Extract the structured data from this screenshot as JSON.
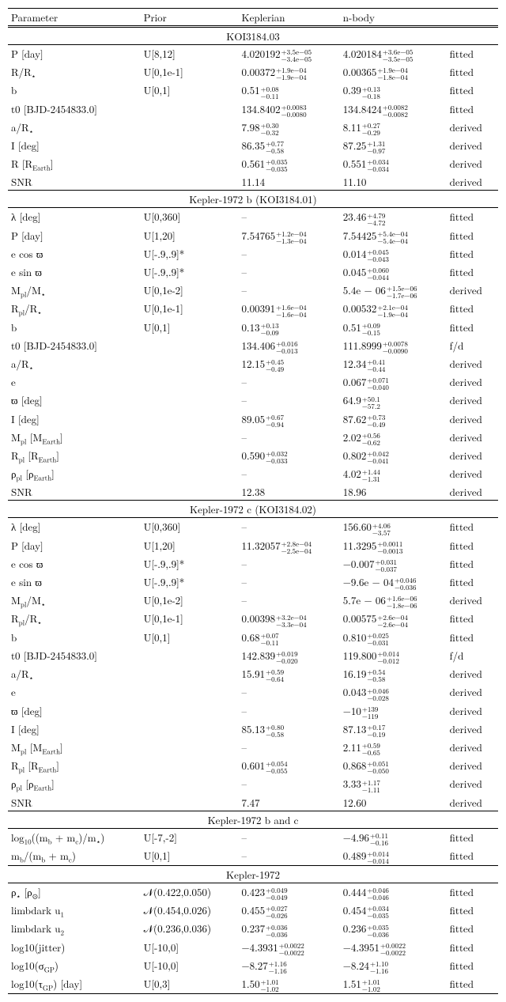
{
  "columns": {
    "c1": "Parameter",
    "c2": "Prior",
    "c3": "Keplerian",
    "c4": "n-body",
    "c5": ""
  },
  "sections": [
    {
      "title": "KOI3184.03",
      "rows": [
        {
          "p": "P [day]",
          "prior": "U[8,12]",
          "kep": {
            "v": "4.020192",
            "u": "+3.5e−05",
            "d": "−3.4e−05"
          },
          "nb": {
            "v": "4.020184",
            "u": "+3.6e−05",
            "d": "−3.5e−05"
          },
          "f": "fitted"
        },
        {
          "p": "R/R<sub>⋆</sub>",
          "prior": "U[0,1e-1]",
          "kep": {
            "v": "0.00372",
            "u": "+1.9e−04",
            "d": "−1.9e−04"
          },
          "nb": {
            "v": "0.00365",
            "u": "+1.9e−04",
            "d": "−1.8e−04"
          },
          "f": "fitted"
        },
        {
          "p": "b",
          "prior": "U[0,1]",
          "kep": {
            "v": "0.51",
            "u": "+0.08",
            "d": "−0.11"
          },
          "nb": {
            "v": "0.39",
            "u": "+0.13",
            "d": "−0.18"
          },
          "f": "fitted"
        },
        {
          "p": "t0 [BJD-2454833.0]",
          "prior": "",
          "kep": {
            "v": "134.8402",
            "u": "+0.0083",
            "d": "−0.0080"
          },
          "nb": {
            "v": "134.8424",
            "u": "+0.0082",
            "d": "−0.0082"
          },
          "f": "fitted"
        },
        {
          "p": "a/R<sub>⋆</sub>",
          "prior": "",
          "kep": {
            "v": "7.98",
            "u": "+0.30",
            "d": "−0.32"
          },
          "nb": {
            "v": "8.11",
            "u": "+0.27",
            "d": "−0.29"
          },
          "f": "derived"
        },
        {
          "p": "I [deg]",
          "prior": "",
          "kep": {
            "v": "86.35",
            "u": "+0.77",
            "d": "−0.58"
          },
          "nb": {
            "v": "87.25",
            "u": "+1.31",
            "d": "−0.97"
          },
          "f": "derived"
        },
        {
          "p": "R [R<sub>Earth</sub>]",
          "prior": "",
          "kep": {
            "v": "0.561",
            "u": "+0.035",
            "d": "−0.035"
          },
          "nb": {
            "v": "0.551",
            "u": "+0.034",
            "d": "−0.034"
          },
          "f": "derived"
        },
        {
          "p": "SNR",
          "prior": "",
          "kep": {
            "plain": "11.14"
          },
          "nb": {
            "plain": "11.10"
          },
          "f": "derived"
        }
      ]
    },
    {
      "title": "Kepler-1972 b (KOI3184.01)",
      "rows": [
        {
          "p": "λ [deg]",
          "prior": "U[0,360]",
          "kep": {
            "plain": "–"
          },
          "nb": {
            "v": "23.46",
            "u": "+4.79",
            "d": "−4.72"
          },
          "f": "fitted"
        },
        {
          "p": "P [day]",
          "prior": "U[1,20]",
          "kep": {
            "v": "7.54765",
            "u": "+1.2e−04",
            "d": "−1.3e−04"
          },
          "nb": {
            "v": "7.54425",
            "u": "+5.4e−04",
            "d": "−5.4e−04"
          },
          "f": "fitted"
        },
        {
          "p": "e cos ϖ",
          "prior": "U[-.9,.9]*",
          "kep": {
            "plain": "–"
          },
          "nb": {
            "v": "0.014",
            "u": "+0.045",
            "d": "−0.043"
          },
          "f": "fitted"
        },
        {
          "p": "e sin ϖ",
          "prior": "U[-.9,.9]*",
          "kep": {
            "plain": "–"
          },
          "nb": {
            "v": "0.045",
            "u": "+0.060",
            "d": "−0.044"
          },
          "f": "fitted"
        },
        {
          "p": "M<sub>pl</sub>/M<sub>⋆</sub>",
          "prior": "U[0,1e-2]",
          "kep": {
            "plain": "–"
          },
          "nb": {
            "v": "5.4e − 06",
            "u": "+1.5e−06",
            "d": "−1.7e−06"
          },
          "f": "derived"
        },
        {
          "p": "R<sub>pl</sub>/R<sub>⋆</sub>",
          "prior": "U[0,1e-1]",
          "kep": {
            "v": "0.00391",
            "u": "+1.6e−04",
            "d": "−1.6e−04"
          },
          "nb": {
            "v": "0.00532",
            "u": "+2.1e−04",
            "d": "−1.9e−04"
          },
          "f": "fitted"
        },
        {
          "p": "b",
          "prior": "U[0,1]",
          "kep": {
            "v": "0.13",
            "u": "+0.13",
            "d": "−0.09"
          },
          "nb": {
            "v": "0.51",
            "u": "+0.09",
            "d": "−0.15"
          },
          "f": "fitted"
        },
        {
          "p": "t0 [BJD-2454833.0]",
          "prior": "",
          "kep": {
            "v": "134.406",
            "u": "+0.016",
            "d": "−0.013"
          },
          "nb": {
            "v": "111.8999",
            "u": "+0.0078",
            "d": "−0.0090"
          },
          "f": "f/d"
        },
        {
          "p": "a/R<sub>⋆</sub>",
          "prior": "",
          "kep": {
            "v": "12.15",
            "u": "+0.45",
            "d": "−0.49"
          },
          "nb": {
            "v": "12.34",
            "u": "+0.41",
            "d": "−0.44"
          },
          "f": "derived"
        },
        {
          "p": "e",
          "prior": "",
          "kep": {
            "plain": "–"
          },
          "nb": {
            "v": "0.067",
            "u": "+0.071",
            "d": "−0.040"
          },
          "f": "derived"
        },
        {
          "p": "ϖ [deg]",
          "prior": "",
          "kep": {
            "plain": "–"
          },
          "nb": {
            "v": "64.9",
            "u": "+50.1",
            "d": "−57.2"
          },
          "f": "derived"
        },
        {
          "p": "I [deg]",
          "prior": "",
          "kep": {
            "v": "89.05",
            "u": "+0.67",
            "d": "−0.94"
          },
          "nb": {
            "v": "87.62",
            "u": "+0.73",
            "d": "−0.49"
          },
          "f": "derived"
        },
        {
          "p": "M<sub>pl</sub> [M<sub>Earth</sub>]",
          "prior": "",
          "kep": {
            "plain": "–"
          },
          "nb": {
            "v": "2.02",
            "u": "+0.56",
            "d": "−0.62"
          },
          "f": "derived"
        },
        {
          "p": "R<sub>pl</sub> [R<sub>Earth</sub>]",
          "prior": "",
          "kep": {
            "v": "0.590",
            "u": "+0.032",
            "d": "−0.033"
          },
          "nb": {
            "v": "0.802",
            "u": "+0.042",
            "d": "−0.041"
          },
          "f": "derived"
        },
        {
          "p": "ρ<sub>pl</sub> [ρ<sub>Earth</sub>]",
          "prior": "",
          "kep": {
            "plain": "–"
          },
          "nb": {
            "v": "4.02",
            "u": "+1.44",
            "d": "−1.31"
          },
          "f": "derived"
        },
        {
          "p": "SNR",
          "prior": "",
          "kep": {
            "plain": "12.38"
          },
          "nb": {
            "plain": "18.96"
          },
          "f": "derived"
        }
      ]
    },
    {
      "title": "Kepler-1972 c (KOI3184.02)",
      "rows": [
        {
          "p": "λ [deg]",
          "prior": "U[0,360]",
          "kep": {
            "plain": "–"
          },
          "nb": {
            "v": "156.60",
            "u": "+4.06",
            "d": "−3.57"
          },
          "f": "fitted"
        },
        {
          "p": "P [day]",
          "prior": "U[1,20]",
          "kep": {
            "v": "11.32057",
            "u": "+2.8e−04",
            "d": "−2.5e−04"
          },
          "nb": {
            "v": "11.3295",
            "u": "+0.0011",
            "d": "−0.0013"
          },
          "f": "fitted"
        },
        {
          "p": "e cos ϖ",
          "prior": "U[-.9,.9]*",
          "kep": {
            "plain": "–"
          },
          "nb": {
            "v": "−0.007",
            "u": "+0.031",
            "d": "−0.037"
          },
          "f": "fitted"
        },
        {
          "p": "e sin ϖ",
          "prior": "U[-.9,.9]*",
          "kep": {
            "plain": "–"
          },
          "nb": {
            "v": "−9.6e − 04",
            "u": "+0.046",
            "d": "−0.036"
          },
          "f": "fitted"
        },
        {
          "p": "M<sub>pl</sub>/M<sub>⋆</sub>",
          "prior": "U[0,1e-2]",
          "kep": {
            "plain": "–"
          },
          "nb": {
            "v": "5.7e − 06",
            "u": "+1.6e−06",
            "d": "−1.8e−06"
          },
          "f": "derived"
        },
        {
          "p": "R<sub>pl</sub>/R<sub>⋆</sub>",
          "prior": "U[0,1e-1]",
          "kep": {
            "v": "0.00398",
            "u": "+3.2e−04",
            "d": "−3.3e−04"
          },
          "nb": {
            "v": "0.00575",
            "u": "+2.6e−04",
            "d": "−2.6e−04"
          },
          "f": "fitted"
        },
        {
          "p": "b",
          "prior": "U[0,1]",
          "kep": {
            "v": "0.68",
            "u": "+0.07",
            "d": "−0.11"
          },
          "nb": {
            "v": "0.810",
            "u": "+0.025",
            "d": "−0.031"
          },
          "f": "fitted"
        },
        {
          "p": "t0 [BJD-2454833.0]",
          "prior": "",
          "kep": {
            "v": "142.839",
            "u": "+0.019",
            "d": "−0.020"
          },
          "nb": {
            "v": "119.800",
            "u": "+0.014",
            "d": "−0.012"
          },
          "f": "f/d"
        },
        {
          "p": "a/R<sub>⋆</sub>",
          "prior": "",
          "kep": {
            "v": "15.91",
            "u": "+0.59",
            "d": "−0.64"
          },
          "nb": {
            "v": "16.19",
            "u": "+0.54",
            "d": "−0.58"
          },
          "f": "derived"
        },
        {
          "p": "e",
          "prior": "",
          "kep": {
            "plain": "–"
          },
          "nb": {
            "v": "0.043",
            "u": "+0.046",
            "d": "−0.028"
          },
          "f": "derived"
        },
        {
          "p": "ϖ [deg]",
          "prior": "",
          "kep": {
            "plain": "–"
          },
          "nb": {
            "v": "−10",
            "u": "+139",
            "d": "−119"
          },
          "f": "derived"
        },
        {
          "p": "I [deg]",
          "prior": "",
          "kep": {
            "v": "85.13",
            "u": "+0.80",
            "d": "−0.58"
          },
          "nb": {
            "v": "87.13",
            "u": "+0.17",
            "d": "−0.19"
          },
          "f": "derived"
        },
        {
          "p": "M<sub>pl</sub> [M<sub>Earth</sub>]",
          "prior": "",
          "kep": {
            "plain": "–"
          },
          "nb": {
            "v": "2.11",
            "u": "+0.59",
            "d": "−0.65"
          },
          "f": "derived"
        },
        {
          "p": "R<sub>pl</sub> [R<sub>Earth</sub>]",
          "prior": "",
          "kep": {
            "v": "0.601",
            "u": "+0.054",
            "d": "−0.055"
          },
          "nb": {
            "v": "0.868",
            "u": "+0.051",
            "d": "−0.050"
          },
          "f": "derived"
        },
        {
          "p": "ρ<sub>pl</sub> [ρ<sub>Earth</sub>]",
          "prior": "",
          "kep": {
            "plain": "–"
          },
          "nb": {
            "v": "3.33",
            "u": "+1.17",
            "d": "−1.11"
          },
          "f": "derived"
        },
        {
          "p": "SNR",
          "prior": "",
          "kep": {
            "plain": "7.47"
          },
          "nb": {
            "plain": "12.60"
          },
          "f": "derived"
        }
      ]
    },
    {
      "title": "Kepler-1972 b and c",
      "rows": [
        {
          "p": "log<sub>10</sub>((m<sub>b</sub> + m<sub>c</sub>)/m<sub>⋆</sub>)",
          "prior": "U[-7,-2]",
          "kep": {
            "plain": "–"
          },
          "nb": {
            "v": "−4.96",
            "u": "+0.11",
            "d": "−0.16"
          },
          "f": "fitted"
        },
        {
          "p": "m<sub>b</sub>/(m<sub>b</sub> + m<sub>c</sub>)",
          "prior": "U[0,1]",
          "kep": {
            "plain": "–"
          },
          "nb": {
            "v": "0.489",
            "u": "+0.014",
            "d": "−0.014"
          },
          "f": "fitted"
        }
      ]
    },
    {
      "title": "Kepler-1972",
      "rows": [
        {
          "p": "ρ<sub>⋆</sub> [ρ<sub>⊙</sub>]",
          "prior": "𝒩(0.422,0.050)",
          "kep": {
            "v": "0.423",
            "u": "+0.049",
            "d": "−0.049"
          },
          "nb": {
            "v": "0.444",
            "u": "+0.046",
            "d": "−0.046"
          },
          "f": "fitted"
        },
        {
          "p": "limbdark u<sub>1</sub>",
          "prior": "𝒩(0.454,0.026)",
          "kep": {
            "v": "0.455",
            "u": "+0.027",
            "d": "−0.026"
          },
          "nb": {
            "v": "0.454",
            "u": "+0.034",
            "d": "−0.035"
          },
          "f": "fitted"
        },
        {
          "p": "limbdark u<sub>2</sub>",
          "prior": "𝒩(0.236,0.036)",
          "kep": {
            "v": "0.237",
            "u": "+0.036",
            "d": "−0.036"
          },
          "nb": {
            "v": "0.236",
            "u": "+0.035",
            "d": "−0.036"
          },
          "f": "fitted"
        },
        {
          "p": "log10(jitter)",
          "prior": "U[-10,0]",
          "kep": {
            "v": "−4.3931",
            "u": "+0.0022",
            "d": "−0.0022"
          },
          "nb": {
            "v": "−4.3951",
            "u": "+0.0022",
            "d": "−0.0022"
          },
          "f": "fitted"
        },
        {
          "p": "log10(σ<sub>GP</sub>)",
          "prior": "U[-10,0]",
          "kep": {
            "v": "−8.27",
            "u": "+1.16",
            "d": "−1.16"
          },
          "nb": {
            "v": "−8.24",
            "u": "+1.10",
            "d": "−1.16"
          },
          "f": "fitted"
        },
        {
          "p": "log10(τ<sub>GP</sub>) [day]",
          "prior": "U[0,3]",
          "kep": {
            "v": "1.50",
            "u": "+1.01",
            "d": "−1.02"
          },
          "nb": {
            "v": "1.51",
            "u": "+1.01",
            "d": "−1.02"
          },
          "f": "fitted"
        }
      ]
    }
  ]
}
